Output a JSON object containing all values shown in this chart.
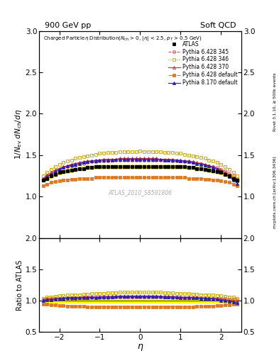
{
  "title_left": "900 GeV pp",
  "title_right": "Soft QCD",
  "plot_title": "Charged Particleη Distribution(N_{ch} > 0, |η| < 2.5, p_T > 0.5 GeV)",
  "ylabel_main": "1/N_{ev} dN_{ch}/dη",
  "ylabel_ratio": "Ratio to ATLAS",
  "xlabel": "η",
  "right_label": "Rivet 3.1.10, ≥ 500k events",
  "right_label2": "mcplots.cern.ch [arXiv:1306.3436]",
  "watermark": "ATLAS_2010_S8591806",
  "xlim": [
    -2.5,
    2.5
  ],
  "ylim_main": [
    0.5,
    3.0
  ],
  "ylim_ratio": [
    0.5,
    2.0
  ],
  "yticks_main": [
    1.0,
    1.5,
    2.0,
    2.5,
    3.0
  ],
  "yticks_ratio": [
    0.5,
    1.0,
    1.5,
    2.0
  ],
  "xticks": [
    -2,
    -1,
    0,
    1,
    2
  ],
  "series": [
    {
      "label": "ATLAS",
      "color": "#000000",
      "marker": "s",
      "markersize": 3.5,
      "linestyle": "none",
      "fillstyle": "full",
      "eta": [
        -2.4,
        -2.3,
        -2.2,
        -2.1,
        -2.0,
        -1.9,
        -1.8,
        -1.7,
        -1.6,
        -1.5,
        -1.4,
        -1.3,
        -1.2,
        -1.1,
        -1.0,
        -0.9,
        -0.8,
        -0.7,
        -0.6,
        -0.5,
        -0.4,
        -0.3,
        -0.2,
        -0.1,
        0.0,
        0.1,
        0.2,
        0.3,
        0.4,
        0.5,
        0.6,
        0.7,
        0.8,
        0.9,
        1.0,
        1.1,
        1.2,
        1.3,
        1.4,
        1.5,
        1.6,
        1.7,
        1.8,
        1.9,
        2.0,
        2.1,
        2.2,
        2.3,
        2.4
      ],
      "values": [
        1.2,
        1.22,
        1.25,
        1.27,
        1.29,
        1.3,
        1.31,
        1.32,
        1.33,
        1.34,
        1.34,
        1.35,
        1.35,
        1.36,
        1.36,
        1.36,
        1.36,
        1.36,
        1.36,
        1.36,
        1.36,
        1.36,
        1.36,
        1.36,
        1.36,
        1.36,
        1.36,
        1.36,
        1.36,
        1.36,
        1.36,
        1.36,
        1.36,
        1.36,
        1.36,
        1.36,
        1.35,
        1.35,
        1.34,
        1.34,
        1.33,
        1.32,
        1.31,
        1.3,
        1.29,
        1.27,
        1.25,
        1.22,
        1.2
      ],
      "yerr": [
        0.02,
        0.02,
        0.02,
        0.02,
        0.02,
        0.02,
        0.02,
        0.02,
        0.02,
        0.02,
        0.02,
        0.02,
        0.02,
        0.02,
        0.02,
        0.02,
        0.02,
        0.02,
        0.02,
        0.02,
        0.02,
        0.02,
        0.02,
        0.02,
        0.02,
        0.02,
        0.02,
        0.02,
        0.02,
        0.02,
        0.02,
        0.02,
        0.02,
        0.02,
        0.02,
        0.02,
        0.02,
        0.02,
        0.02,
        0.02,
        0.02,
        0.02,
        0.02,
        0.02,
        0.02,
        0.02,
        0.02,
        0.02,
        0.02
      ]
    },
    {
      "label": "Pythia 6.428 345",
      "color": "#e05050",
      "marker": "o",
      "markersize": 3,
      "linestyle": "--",
      "fillstyle": "none",
      "eta": [
        -2.4,
        -2.3,
        -2.2,
        -2.1,
        -2.0,
        -1.9,
        -1.8,
        -1.7,
        -1.6,
        -1.5,
        -1.4,
        -1.3,
        -1.2,
        -1.1,
        -1.0,
        -0.9,
        -0.8,
        -0.7,
        -0.6,
        -0.5,
        -0.4,
        -0.3,
        -0.2,
        -0.1,
        0.0,
        0.1,
        0.2,
        0.3,
        0.4,
        0.5,
        0.6,
        0.7,
        0.8,
        0.9,
        1.0,
        1.1,
        1.2,
        1.3,
        1.4,
        1.5,
        1.6,
        1.7,
        1.8,
        1.9,
        2.0,
        2.1,
        2.2,
        2.3,
        2.4
      ],
      "values": [
        1.22,
        1.25,
        1.28,
        1.31,
        1.33,
        1.35,
        1.36,
        1.37,
        1.38,
        1.4,
        1.4,
        1.41,
        1.42,
        1.42,
        1.43,
        1.43,
        1.43,
        1.44,
        1.44,
        1.44,
        1.44,
        1.44,
        1.44,
        1.44,
        1.44,
        1.44,
        1.44,
        1.44,
        1.44,
        1.44,
        1.44,
        1.44,
        1.43,
        1.43,
        1.43,
        1.42,
        1.42,
        1.41,
        1.4,
        1.4,
        1.38,
        1.37,
        1.36,
        1.35,
        1.33,
        1.31,
        1.28,
        1.25,
        1.22
      ]
    },
    {
      "label": "Pythia 6.428 346",
      "color": "#c8a000",
      "marker": "s",
      "markersize": 3,
      "linestyle": "dotted",
      "fillstyle": "none",
      "eta": [
        -2.4,
        -2.3,
        -2.2,
        -2.1,
        -2.0,
        -1.9,
        -1.8,
        -1.7,
        -1.6,
        -1.5,
        -1.4,
        -1.3,
        -1.2,
        -1.1,
        -1.0,
        -0.9,
        -0.8,
        -0.7,
        -0.6,
        -0.5,
        -0.4,
        -0.3,
        -0.2,
        -0.1,
        0.0,
        0.1,
        0.2,
        0.3,
        0.4,
        0.5,
        0.6,
        0.7,
        0.8,
        0.9,
        1.0,
        1.1,
        1.2,
        1.3,
        1.4,
        1.5,
        1.6,
        1.7,
        1.8,
        1.9,
        2.0,
        2.1,
        2.2,
        2.3,
        2.4
      ],
      "values": [
        1.25,
        1.29,
        1.33,
        1.36,
        1.39,
        1.41,
        1.43,
        1.44,
        1.46,
        1.47,
        1.48,
        1.49,
        1.5,
        1.51,
        1.52,
        1.52,
        1.53,
        1.53,
        1.53,
        1.54,
        1.54,
        1.54,
        1.54,
        1.54,
        1.55,
        1.54,
        1.54,
        1.54,
        1.54,
        1.54,
        1.53,
        1.53,
        1.53,
        1.52,
        1.52,
        1.51,
        1.5,
        1.49,
        1.48,
        1.47,
        1.46,
        1.44,
        1.43,
        1.41,
        1.39,
        1.36,
        1.33,
        1.29,
        1.25
      ]
    },
    {
      "label": "Pythia 6.428 370",
      "color": "#c03030",
      "marker": "^",
      "markersize": 3,
      "linestyle": "-",
      "fillstyle": "none",
      "eta": [
        -2.4,
        -2.3,
        -2.2,
        -2.1,
        -2.0,
        -1.9,
        -1.8,
        -1.7,
        -1.6,
        -1.5,
        -1.4,
        -1.3,
        -1.2,
        -1.1,
        -1.0,
        -0.9,
        -0.8,
        -0.7,
        -0.6,
        -0.5,
        -0.4,
        -0.3,
        -0.2,
        -0.1,
        0.0,
        0.1,
        0.2,
        0.3,
        0.4,
        0.5,
        0.6,
        0.7,
        0.8,
        0.9,
        1.0,
        1.1,
        1.2,
        1.3,
        1.4,
        1.5,
        1.6,
        1.7,
        1.8,
        1.9,
        2.0,
        2.1,
        2.2,
        2.3,
        2.4
      ],
      "values": [
        1.22,
        1.26,
        1.29,
        1.32,
        1.34,
        1.36,
        1.37,
        1.39,
        1.4,
        1.41,
        1.42,
        1.43,
        1.43,
        1.44,
        1.44,
        1.45,
        1.45,
        1.45,
        1.45,
        1.46,
        1.46,
        1.46,
        1.46,
        1.46,
        1.46,
        1.46,
        1.46,
        1.46,
        1.46,
        1.45,
        1.45,
        1.45,
        1.45,
        1.44,
        1.44,
        1.43,
        1.43,
        1.42,
        1.41,
        1.4,
        1.39,
        1.37,
        1.36,
        1.34,
        1.32,
        1.29,
        1.26,
        1.22,
        1.19
      ]
    },
    {
      "label": "Pythia 6.428 default",
      "color": "#e07820",
      "marker": "s",
      "markersize": 3,
      "linestyle": "-.",
      "fillstyle": "full",
      "eta": [
        -2.4,
        -2.3,
        -2.2,
        -2.1,
        -2.0,
        -1.9,
        -1.8,
        -1.7,
        -1.6,
        -1.5,
        -1.4,
        -1.3,
        -1.2,
        -1.1,
        -1.0,
        -0.9,
        -0.8,
        -0.7,
        -0.6,
        -0.5,
        -0.4,
        -0.3,
        -0.2,
        -0.1,
        0.0,
        0.1,
        0.2,
        0.3,
        0.4,
        0.5,
        0.6,
        0.7,
        0.8,
        0.9,
        1.0,
        1.1,
        1.2,
        1.3,
        1.4,
        1.5,
        1.6,
        1.7,
        1.8,
        1.9,
        2.0,
        2.1,
        2.2,
        2.3,
        2.4
      ],
      "values": [
        1.13,
        1.15,
        1.17,
        1.18,
        1.19,
        1.2,
        1.2,
        1.21,
        1.21,
        1.22,
        1.22,
        1.22,
        1.22,
        1.23,
        1.23,
        1.23,
        1.23,
        1.23,
        1.23,
        1.23,
        1.23,
        1.23,
        1.23,
        1.23,
        1.23,
        1.23,
        1.23,
        1.23,
        1.23,
        1.23,
        1.23,
        1.23,
        1.23,
        1.23,
        1.23,
        1.23,
        1.22,
        1.22,
        1.22,
        1.22,
        1.21,
        1.21,
        1.2,
        1.2,
        1.19,
        1.18,
        1.17,
        1.15,
        1.13
      ]
    },
    {
      "label": "Pythia 8.170 default",
      "color": "#2020c0",
      "marker": "^",
      "markersize": 3,
      "linestyle": "-",
      "fillstyle": "full",
      "eta": [
        -2.4,
        -2.3,
        -2.2,
        -2.1,
        -2.0,
        -1.9,
        -1.8,
        -1.7,
        -1.6,
        -1.5,
        -1.4,
        -1.3,
        -1.2,
        -1.1,
        -1.0,
        -0.9,
        -0.8,
        -0.7,
        -0.6,
        -0.5,
        -0.4,
        -0.3,
        -0.2,
        -0.1,
        0.0,
        0.1,
        0.2,
        0.3,
        0.4,
        0.5,
        0.6,
        0.7,
        0.8,
        0.9,
        1.0,
        1.1,
        1.2,
        1.3,
        1.4,
        1.5,
        1.6,
        1.7,
        1.8,
        1.9,
        2.0,
        2.1,
        2.2,
        2.3,
        2.4
      ],
      "values": [
        1.2,
        1.24,
        1.27,
        1.3,
        1.33,
        1.35,
        1.37,
        1.38,
        1.39,
        1.4,
        1.41,
        1.42,
        1.43,
        1.43,
        1.44,
        1.44,
        1.44,
        1.44,
        1.45,
        1.45,
        1.45,
        1.45,
        1.45,
        1.45,
        1.45,
        1.45,
        1.45,
        1.45,
        1.45,
        1.45,
        1.44,
        1.44,
        1.44,
        1.44,
        1.43,
        1.43,
        1.42,
        1.41,
        1.4,
        1.39,
        1.38,
        1.37,
        1.35,
        1.33,
        1.3,
        1.27,
        1.24,
        1.2,
        1.16
      ]
    }
  ]
}
